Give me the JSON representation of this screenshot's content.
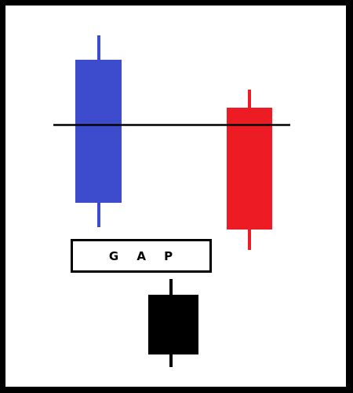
{
  "colors": {
    "frame": "#000000",
    "background": "#ffffff",
    "bullish_candle": "#3d4ccc",
    "bearish_candle": "#ed1c24",
    "gap_candle": "#000000",
    "line": "#000000",
    "label_text": "#000000"
  },
  "gap_label": {
    "text": "G A P"
  }
}
